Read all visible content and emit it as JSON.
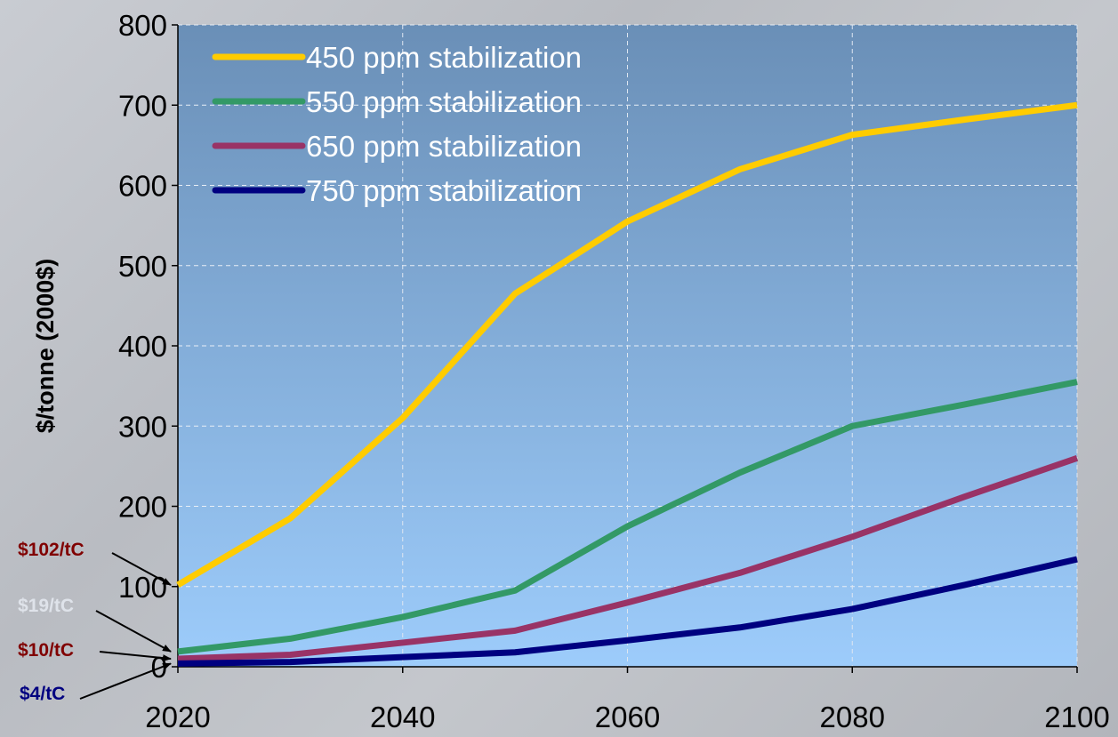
{
  "chart_data": {
    "type": "line",
    "title": "",
    "xlabel": "",
    "ylabel": "$/tonne (2000$)",
    "xlim": [
      2020,
      2100
    ],
    "ylim": [
      0,
      800
    ],
    "x_ticks": [
      2020,
      2040,
      2060,
      2080,
      2100
    ],
    "y_ticks": [
      0,
      100,
      200,
      300,
      400,
      500,
      600,
      700,
      800
    ],
    "grid": "horizontal and vertical dashed",
    "legend_placement": "top-left",
    "x": [
      2020,
      2030,
      2040,
      2050,
      2060,
      2070,
      2080,
      2090,
      2100
    ],
    "series": [
      {
        "name": "450 ppm stabilization",
        "color": "#ffcc00",
        "values": [
          102,
          185,
          310,
          465,
          555,
          620,
          663,
          682,
          700
        ]
      },
      {
        "name": "550 ppm stabilization",
        "color": "#339966",
        "values": [
          19,
          35,
          62,
          95,
          175,
          242,
          300,
          327,
          355
        ]
      },
      {
        "name": "650 ppm stabilization",
        "color": "#993366",
        "values": [
          10,
          15,
          30,
          45,
          80,
          117,
          162,
          212,
          260
        ]
      },
      {
        "name": "750 ppm stabilization",
        "color": "#000080",
        "values": [
          4,
          6,
          12,
          18,
          33,
          49,
          72,
          102,
          134
        ]
      }
    ],
    "annotations": [
      {
        "text": "$102/tC",
        "color": "#800000",
        "target_x": 2020,
        "target_y": 102
      },
      {
        "text": "$19/tC",
        "color": "#dfe3ea",
        "target_x": 2020,
        "target_y": 19
      },
      {
        "text": "$10/tC",
        "color": "#800000",
        "target_x": 2020,
        "target_y": 10
      },
      {
        "text": "$4/tC",
        "color": "#000080",
        "target_x": 2020,
        "target_y": 4
      }
    ]
  }
}
